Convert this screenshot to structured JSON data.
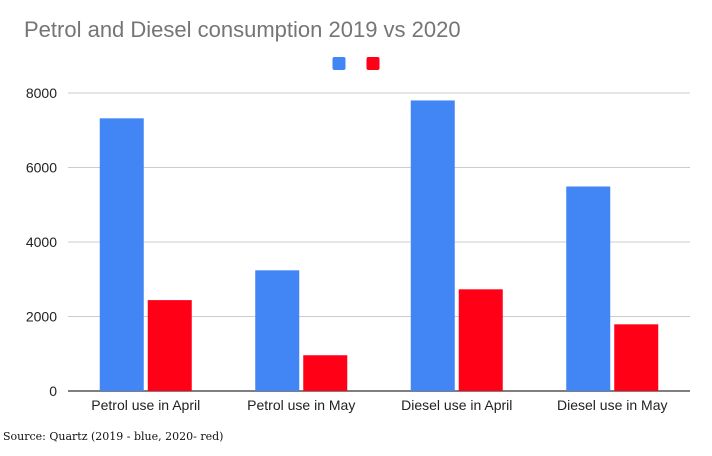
{
  "chart_data": {
    "type": "bar",
    "title": "Petrol and Diesel consumption 2019 vs 2020",
    "categories": [
      "Petrol use in April",
      "Petrol use in May",
      "Diesel use in April",
      "Diesel use in May"
    ],
    "series": [
      {
        "values": [
          7320,
          3240,
          7800,
          5490
        ],
        "color": "#4285f4"
      },
      {
        "values": [
          2440,
          960,
          2730,
          1790
        ],
        "color": "#ff0016"
      }
    ],
    "ylim": [
      0,
      8000
    ],
    "yticks": [
      "0",
      "2000",
      "4000",
      "6000",
      "8000"
    ],
    "grid": true,
    "legend_position": "top-center"
  },
  "source_note": "Source: Quartz (2019 - blue, 2020- red)"
}
